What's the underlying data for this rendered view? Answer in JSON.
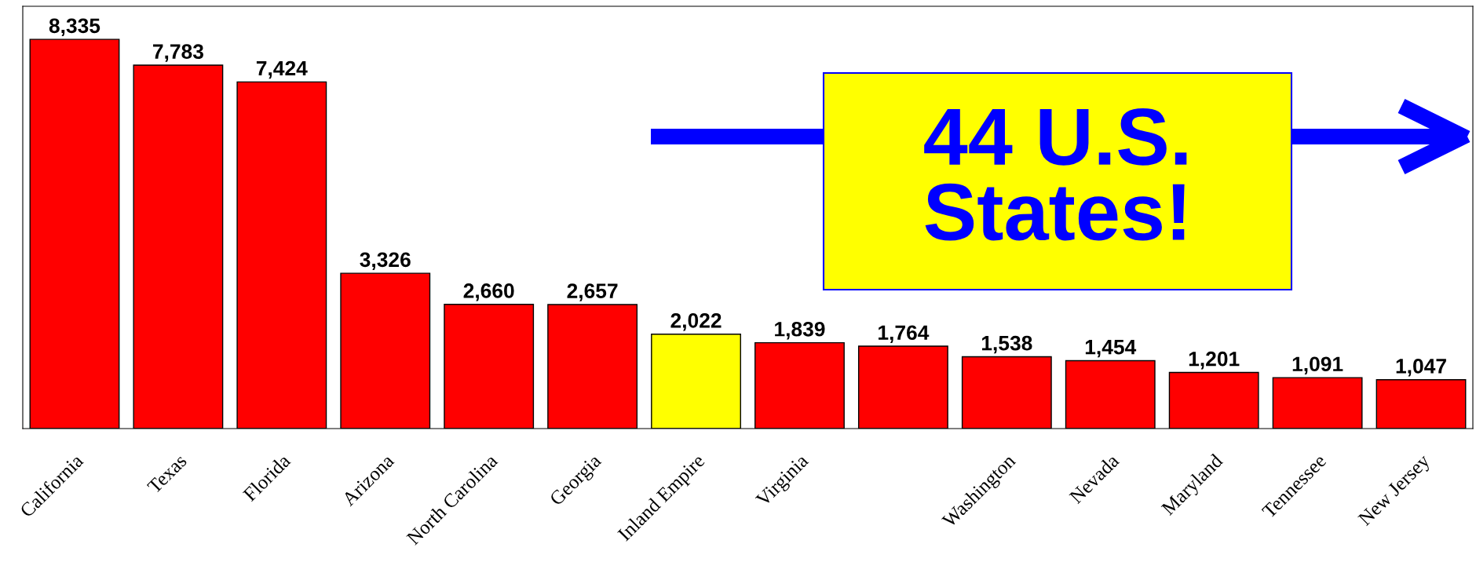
{
  "chart_data": {
    "type": "bar",
    "categories": [
      "California",
      "Texas",
      "Florida",
      "Arizona",
      "North Carolina",
      "Georgia",
      "Inland Empire",
      "Virginia",
      null,
      "Washington",
      "Nevada",
      "Maryland",
      "Tennessee",
      "New Jersey"
    ],
    "values": [
      8335,
      7783,
      7424,
      3326,
      2660,
      2657,
      2022,
      1839,
      1764,
      1538,
      1454,
      1201,
      1091,
      1047
    ],
    "colors": [
      "#ff0000",
      "#ff0000",
      "#ff0000",
      "#ff0000",
      "#ff0000",
      "#ff0000",
      "#ffff00",
      "#ff0000",
      "#ff0000",
      "#ff0000",
      "#ff0000",
      "#ff0000",
      "#ff0000",
      "#ff0000"
    ],
    "value_labels": [
      "8,335",
      "7,783",
      "7,424",
      "3,326",
      "2,660",
      "2,657",
      "2,022",
      "1,839",
      "1,764",
      "1,538",
      "1,454",
      "1,201",
      "1,091",
      "1,047"
    ],
    "annotations": [
      "44 U.S.\nStates!"
    ],
    "grid": false,
    "legend": false
  }
}
